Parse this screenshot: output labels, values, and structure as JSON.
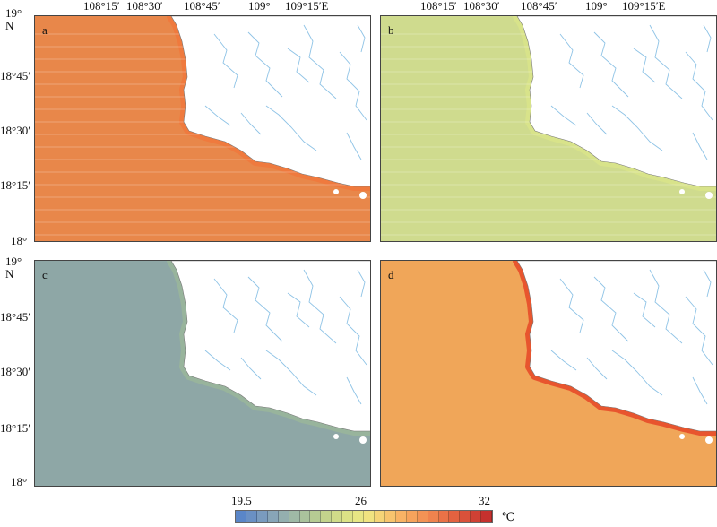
{
  "top_axis_labels": [
    "108°15′",
    "108°30′",
    "108°45′",
    "109°",
    "109°15′E"
  ],
  "left_axis_top": {
    "a": "19°",
    "b": "N"
  },
  "left_axis_labels": [
    "18°45′",
    "18°30′",
    "18°15′",
    "18°"
  ],
  "panels": [
    {
      "id": "a",
      "label": "a",
      "sea_color": "#e8874a",
      "coast_color": "#ef7a3e",
      "striped": true
    },
    {
      "id": "b",
      "label": "b",
      "sea_color": "#cfdb8e",
      "coast_color": "#d8e38a",
      "striped": true
    },
    {
      "id": "c",
      "label": "c",
      "sea_color": "#8ea7a6",
      "coast_color": "#98b49c",
      "striped": false
    },
    {
      "id": "d",
      "label": "d",
      "sea_color": "#f0a659",
      "coast_color": "#e8552e",
      "striped": false
    }
  ],
  "colorbar": {
    "min_label": "19.5",
    "mid_label": "26",
    "max_label": "32",
    "unit": "℃",
    "colors": [
      "#5a86c8",
      "#6a90c4",
      "#7a9bbf",
      "#88a5b8",
      "#94afaf",
      "#9fb9a6",
      "#aac29c",
      "#b6cb93",
      "#c3d38c",
      "#d0db89",
      "#dce286",
      "#e7e684",
      "#f0e380",
      "#f5d477",
      "#f7c46e",
      "#f8b365",
      "#f6a35c",
      "#f39355",
      "#ef834e",
      "#ea7247",
      "#e36240",
      "#da513a",
      "#d04134",
      "#c6312e"
    ]
  }
}
